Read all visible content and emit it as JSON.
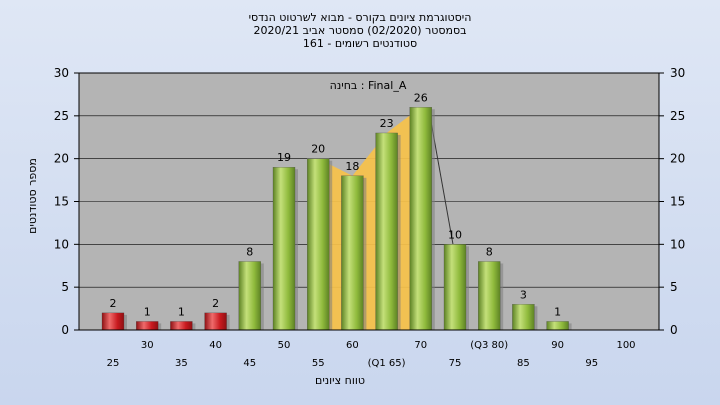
{
  "title_lines": [
    "היסטוגרמת ציונים בקורס - מבוא לשרטוט הנדסי",
    "בסמסטר  (02/2020)  סמסטר אביב 2020/21",
    "סטודנטים רשומים - 161"
  ],
  "colors": {
    "fail": "#c91a1f",
    "pass": "#8fba3c",
    "iqr_band": "#f7c24a"
  },
  "chart_data": {
    "type": "bar",
    "categories": [
      "25",
      "35",
      "45",
      "50",
      "55",
      "60",
      "65",
      "70",
      "75",
      "80",
      "85",
      "90",
      "95",
      "100"
    ],
    "values": [
      2,
      1,
      1,
      2,
      8,
      19,
      20,
      18,
      23,
      26,
      10,
      8,
      3,
      1
    ],
    "value_labels": [
      "2",
      "1",
      "1",
      "2",
      "8",
      "19",
      "20",
      "18",
      "23",
      "26",
      "10",
      "8",
      "3",
      "1"
    ],
    "passing_from": "55",
    "x_tick_labels": [
      "25",
      "30",
      "35",
      "40",
      "45",
      "50",
      "55",
      "60",
      "(Q1 65)",
      "70",
      "75",
      "(Q3 80)",
      "85",
      "90",
      "95",
      "100"
    ],
    "y_ticks": [
      0,
      5,
      10,
      15,
      20,
      25,
      30
    ],
    "ylim": [
      0,
      30
    ],
    "ylabel": "מספר סטודנטים",
    "xlabel": "טווח ציונים",
    "annotation": "בחינה : Final_A",
    "right_axis": true,
    "grid": "horizontal"
  }
}
